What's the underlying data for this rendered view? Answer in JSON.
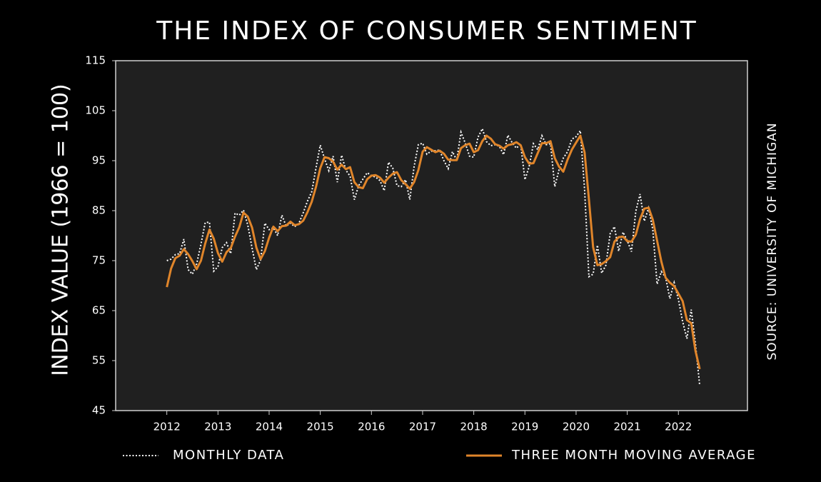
{
  "chart_data": {
    "type": "line",
    "title": "THE INDEX OF CONSUMER SENTIMENT",
    "y_label": "INDEX VALUE (1966 = 100)",
    "source": "SOURCE: UNIVERSITY OF MICHIGAN",
    "legend": "bottom",
    "xlim": [
      2011,
      2023.35
    ],
    "xticks": [
      2012,
      2013,
      2014,
      2015,
      2016,
      2017,
      2018,
      2019,
      2020,
      2021,
      2022
    ],
    "ylim": [
      45,
      115
    ],
    "yticks": [
      45,
      55,
      65,
      75,
      85,
      95,
      105,
      115
    ],
    "x": [
      2012.0,
      2012.083,
      2012.167,
      2012.25,
      2012.333,
      2012.417,
      2012.5,
      2012.583,
      2012.667,
      2012.75,
      2012.833,
      2012.917,
      2013.0,
      2013.083,
      2013.167,
      2013.25,
      2013.333,
      2013.417,
      2013.5,
      2013.583,
      2013.667,
      2013.75,
      2013.833,
      2013.917,
      2014.0,
      2014.083,
      2014.167,
      2014.25,
      2014.333,
      2014.417,
      2014.5,
      2014.583,
      2014.667,
      2014.75,
      2014.833,
      2014.917,
      2015.0,
      2015.083,
      2015.167,
      2015.25,
      2015.333,
      2015.417,
      2015.5,
      2015.583,
      2015.667,
      2015.75,
      2015.833,
      2015.917,
      2016.0,
      2016.083,
      2016.167,
      2016.25,
      2016.333,
      2016.417,
      2016.5,
      2016.583,
      2016.667,
      2016.75,
      2016.833,
      2016.917,
      2017.0,
      2017.083,
      2017.167,
      2017.25,
      2017.333,
      2017.417,
      2017.5,
      2017.583,
      2017.667,
      2017.75,
      2017.833,
      2017.917,
      2018.0,
      2018.083,
      2018.167,
      2018.25,
      2018.333,
      2018.417,
      2018.5,
      2018.583,
      2018.667,
      2018.75,
      2018.833,
      2018.917,
      2019.0,
      2019.083,
      2019.167,
      2019.25,
      2019.333,
      2019.417,
      2019.5,
      2019.583,
      2019.667,
      2019.75,
      2019.833,
      2019.917,
      2020.0,
      2020.083,
      2020.167,
      2020.25,
      2020.333,
      2020.417,
      2020.5,
      2020.583,
      2020.667,
      2020.75,
      2020.833,
      2020.917,
      2021.0,
      2021.083,
      2021.167,
      2021.25,
      2021.333,
      2021.417,
      2021.5,
      2021.583,
      2021.667,
      2021.75,
      2021.833,
      2021.917,
      2022.0,
      2022.083,
      2022.167,
      2022.25,
      2022.333,
      2022.417
    ],
    "series": [
      {
        "name": "MONTHLY DATA",
        "color": "#ffffff",
        "style": "dotted",
        "values": [
          75.0,
          75.3,
          76.2,
          76.4,
          79.3,
          73.2,
          72.3,
          74.3,
          78.3,
          82.6,
          82.7,
          72.9,
          73.8,
          77.6,
          78.6,
          76.4,
          84.5,
          84.1,
          85.1,
          82.1,
          77.5,
          73.2,
          75.1,
          82.5,
          81.2,
          81.6,
          80.0,
          84.1,
          81.9,
          82.5,
          81.8,
          82.5,
          84.6,
          86.9,
          88.8,
          93.6,
          98.1,
          95.4,
          93.0,
          95.9,
          90.7,
          96.1,
          93.1,
          91.9,
          87.2,
          90.0,
          91.3,
          92.6,
          92.0,
          91.7,
          91.0,
          89.0,
          94.7,
          93.5,
          90.0,
          89.8,
          91.2,
          87.2,
          93.8,
          98.2,
          98.5,
          96.3,
          96.9,
          97.0,
          97.1,
          95.0,
          93.4,
          96.8,
          95.1,
          100.7,
          98.5,
          95.9,
          95.7,
          99.7,
          101.4,
          98.8,
          98.0,
          98.2,
          97.9,
          96.2,
          100.1,
          98.6,
          97.5,
          98.3,
          91.2,
          93.8,
          98.4,
          97.2,
          100.0,
          98.2,
          98.4,
          89.8,
          93.2,
          95.5,
          96.8,
          99.3,
          99.8,
          101.0,
          89.1,
          71.8,
          72.3,
          78.1,
          72.5,
          74.1,
          80.4,
          81.8,
          76.9,
          80.7,
          79.0,
          76.8,
          84.9,
          88.3,
          82.9,
          85.5,
          81.2,
          70.3,
          72.8,
          71.7,
          67.4,
          70.6,
          67.2,
          62.8,
          59.4,
          65.2,
          58.4,
          50.0
        ]
      },
      {
        "name": "THREE MONTH MOVING AVERAGE",
        "color": "#e0852a",
        "style": "solid",
        "values": [
          69.7,
          73.4,
          75.5,
          76.0,
          77.3,
          76.3,
          74.9,
          73.3,
          75.0,
          78.4,
          81.2,
          79.4,
          76.5,
          74.8,
          76.7,
          77.5,
          79.8,
          81.7,
          84.6,
          83.8,
          81.6,
          77.6,
          75.3,
          76.9,
          79.6,
          81.8,
          80.9,
          81.9,
          82.0,
          82.8,
          82.1,
          82.3,
          83.0,
          84.7,
          86.8,
          89.8,
          93.5,
          95.7,
          95.5,
          94.8,
          93.2,
          94.2,
          93.3,
          93.7,
          90.7,
          89.7,
          89.5,
          91.3,
          92.0,
          92.1,
          91.6,
          90.6,
          91.6,
          92.4,
          92.7,
          91.1,
          90.3,
          89.4,
          90.7,
          93.1,
          96.8,
          97.7,
          97.2,
          96.7,
          97.0,
          96.4,
          95.2,
          95.1,
          95.1,
          97.5,
          98.1,
          98.4,
          96.7,
          97.1,
          98.9,
          100.0,
          99.4,
          98.3,
          98.0,
          97.4,
          98.1,
          98.3,
          98.7,
          98.1,
          95.7,
          94.4,
          94.5,
          96.5,
          98.5,
          98.5,
          98.9,
          95.5,
          93.8,
          92.8,
          95.2,
          97.2,
          98.6,
          100.0,
          96.6,
          87.3,
          77.7,
          74.1,
          74.3,
          74.9,
          75.7,
          78.8,
          79.7,
          79.8,
          78.9,
          78.8,
          80.2,
          83.3,
          85.4,
          85.6,
          83.2,
          79.0,
          74.8,
          71.6,
          70.6,
          69.9,
          68.4,
          66.9,
          63.1,
          62.5,
          57.0,
          53.3
        ]
      }
    ]
  }
}
